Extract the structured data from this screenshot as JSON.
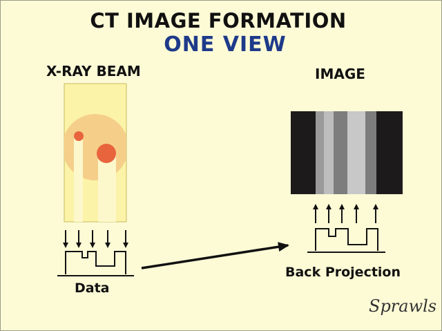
{
  "title": "CT IMAGE FORMATION",
  "subtitle": "ONE VIEW",
  "beam_label": "X-RAY BEAM",
  "image_label": "IMAGE",
  "data_label": "Data",
  "back_projection_label": "Back Projection",
  "signature": "Sprawls",
  "colors": {
    "background": "#fdfbd6",
    "beam": "#fbf3a8",
    "object": "#f5cf8a",
    "dense_spot": "#e8643c",
    "title": "#111111",
    "subtitle": "#1e3a8a"
  },
  "image_stripes": [
    "#1c1a1a",
    "#9a9a9a",
    "#bdbdbd",
    "#7d7d7d",
    "#c8c8c8",
    "#7d7d7d",
    "#1c1a1a"
  ]
}
